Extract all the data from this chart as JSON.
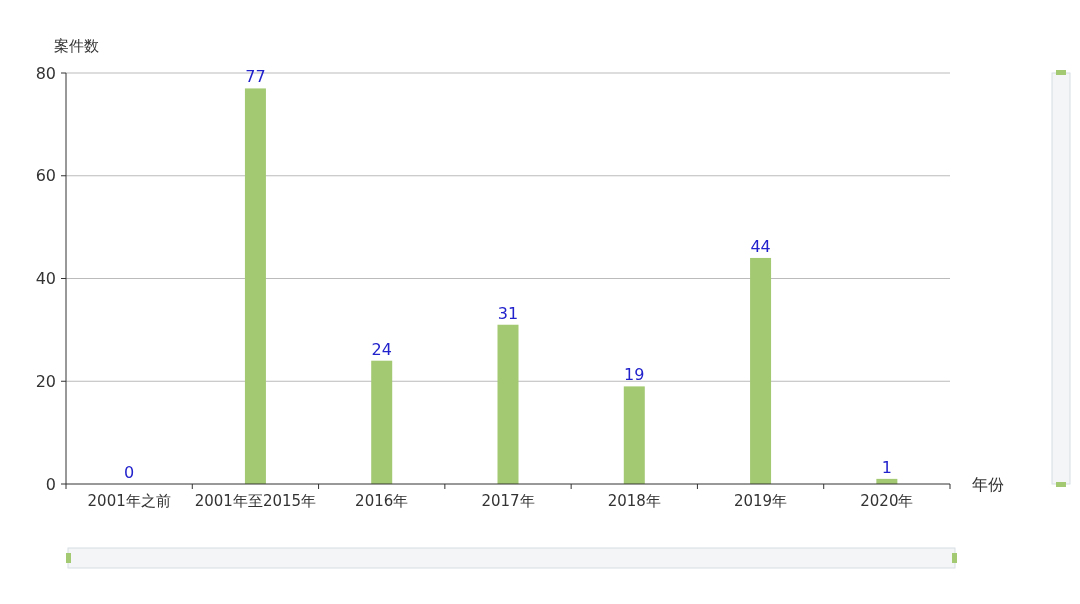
{
  "chart_data": {
    "type": "bar",
    "xlabel": "年份",
    "ylabel": "案件数",
    "categories": [
      "2001年之前",
      "2001年至2015年",
      "2016年",
      "2017年",
      "2018年",
      "2019年",
      "2020年"
    ],
    "values": [
      0,
      77,
      24,
      31,
      19,
      44,
      1
    ],
    "color": "#a3c973",
    "ylim": [
      0,
      80
    ],
    "yticks": [
      0,
      20,
      40,
      60,
      80
    ],
    "grid": "y",
    "data_labels": true
  }
}
